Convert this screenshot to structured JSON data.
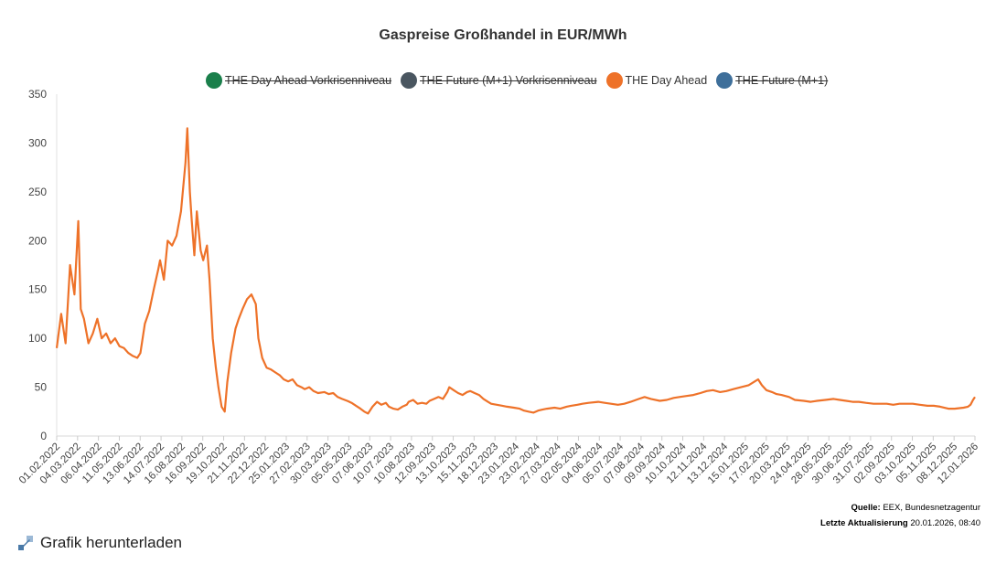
{
  "chart_data": {
    "type": "line",
    "title": "Gaspreise Großhandel in EUR/MWh",
    "ylim": [
      0,
      350
    ],
    "y_ticks": [
      "0",
      "50",
      "100",
      "150",
      "200",
      "250",
      "300",
      "350"
    ],
    "x_tick_labels": [
      "01.02.2022",
      "04.03.2022",
      "06.04.2022",
      "11.05.2022",
      "13.06.2022",
      "14.07.2022",
      "16.08.2022",
      "16.09.2022",
      "19.10.2022",
      "21.11.2022",
      "22.12.2022",
      "25.01.2023",
      "27.02.2023",
      "30.03.2023",
      "05.05.2023",
      "07.06.2023",
      "10.07.2023",
      "10.08.2023",
      "12.09.2023",
      "13.10.2023",
      "15.11.2023",
      "18.12.2023",
      "23.01.2024",
      "23.02.2024",
      "27.03.2024",
      "02.05.2024",
      "04.06.2024",
      "05.07.2024",
      "07.08.2024",
      "09.09.2024",
      "10.10.2024",
      "12.11.2024",
      "13.12.2024",
      "15.01.2025",
      "17.02.2025",
      "20.03.2025",
      "24.04.2025",
      "28.05.2025",
      "30.06.2025",
      "31.07.2025",
      "02.09.2025",
      "03.10.2025",
      "05.11.2025",
      "08.12.2025",
      "12.01.2026"
    ],
    "grid": false,
    "legend_position": "top",
    "series": [
      {
        "name": "THE Day Ahead Vorkrisenniveau",
        "color": "#1a7f4b",
        "visible": false,
        "values": []
      },
      {
        "name": "THE Future (M+1) Vorkrisenniveau",
        "color": "#4a5660",
        "visible": false,
        "values": []
      },
      {
        "name": "THE Day Ahead",
        "color": "#ee7229",
        "visible": true,
        "points": [
          [
            "01.02.2022",
            90
          ],
          [
            "08.02.2022",
            125
          ],
          [
            "15.02.2022",
            95
          ],
          [
            "22.02.2022",
            175
          ],
          [
            "01.03.2022",
            145
          ],
          [
            "07.03.2022",
            220
          ],
          [
            "11.03.2022",
            130
          ],
          [
            "16.03.2022",
            120
          ],
          [
            "23.03.2022",
            95
          ],
          [
            "30.03.2022",
            105
          ],
          [
            "06.04.2022",
            120
          ],
          [
            "13.04.2022",
            100
          ],
          [
            "20.04.2022",
            105
          ],
          [
            "27.04.2022",
            95
          ],
          [
            "04.05.2022",
            100
          ],
          [
            "11.05.2022",
            92
          ],
          [
            "18.05.2022",
            90
          ],
          [
            "25.05.2022",
            85
          ],
          [
            "01.06.2022",
            82
          ],
          [
            "08.06.2022",
            80
          ],
          [
            "13.06.2022",
            85
          ],
          [
            "20.06.2022",
            115
          ],
          [
            "27.06.2022",
            128
          ],
          [
            "04.07.2022",
            150
          ],
          [
            "11.07.2022",
            170
          ],
          [
            "14.07.2022",
            180
          ],
          [
            "20.07.2022",
            160
          ],
          [
            "26.07.2022",
            200
          ],
          [
            "02.08.2022",
            195
          ],
          [
            "09.08.2022",
            205
          ],
          [
            "16.08.2022",
            230
          ],
          [
            "23.08.2022",
            280
          ],
          [
            "26.08.2022",
            315
          ],
          [
            "30.08.2022",
            250
          ],
          [
            "02.09.2022",
            220
          ],
          [
            "06.09.2022",
            185
          ],
          [
            "10.09.2022",
            230
          ],
          [
            "16.09.2022",
            190
          ],
          [
            "20.09.2022",
            180
          ],
          [
            "26.09.2022",
            195
          ],
          [
            "30.09.2022",
            160
          ],
          [
            "05.10.2022",
            100
          ],
          [
            "10.10.2022",
            70
          ],
          [
            "14.10.2022",
            50
          ],
          [
            "19.10.2022",
            30
          ],
          [
            "24.10.2022",
            25
          ],
          [
            "28.10.2022",
            55
          ],
          [
            "03.11.2022",
            85
          ],
          [
            "10.11.2022",
            110
          ],
          [
            "15.11.2022",
            120
          ],
          [
            "21.11.2022",
            130
          ],
          [
            "28.11.2022",
            140
          ],
          [
            "05.12.2022",
            145
          ],
          [
            "12.12.2022",
            135
          ],
          [
            "16.12.2022",
            100
          ],
          [
            "22.12.2022",
            80
          ],
          [
            "29.12.2022",
            70
          ],
          [
            "05.01.2023",
            68
          ],
          [
            "12.01.2023",
            65
          ],
          [
            "19.01.2023",
            62
          ],
          [
            "25.01.2023",
            58
          ],
          [
            "01.02.2023",
            56
          ],
          [
            "08.02.2023",
            58
          ],
          [
            "15.02.2023",
            52
          ],
          [
            "22.02.2023",
            50
          ],
          [
            "27.02.2023",
            48
          ],
          [
            "06.03.2023",
            50
          ],
          [
            "13.03.2023",
            46
          ],
          [
            "20.03.2023",
            44
          ],
          [
            "30.03.2023",
            45
          ],
          [
            "06.04.2023",
            43
          ],
          [
            "13.04.2023",
            44
          ],
          [
            "20.04.2023",
            40
          ],
          [
            "27.04.2023",
            38
          ],
          [
            "05.05.2023",
            36
          ],
          [
            "12.05.2023",
            34
          ],
          [
            "19.05.2023",
            31
          ],
          [
            "26.05.2023",
            28
          ],
          [
            "01.06.2023",
            25
          ],
          [
            "07.06.2023",
            23
          ],
          [
            "14.06.2023",
            30
          ],
          [
            "21.06.2023",
            35
          ],
          [
            "28.06.2023",
            32
          ],
          [
            "05.07.2023",
            34
          ],
          [
            "10.07.2023",
            30
          ],
          [
            "17.07.2023",
            28
          ],
          [
            "24.07.2023",
            27
          ],
          [
            "31.07.2023",
            30
          ],
          [
            "07.08.2023",
            32
          ],
          [
            "10.08.2023",
            35
          ],
          [
            "17.08.2023",
            37
          ],
          [
            "24.08.2023",
            33
          ],
          [
            "31.08.2023",
            34
          ],
          [
            "07.09.2023",
            33
          ],
          [
            "12.09.2023",
            36
          ],
          [
            "19.09.2023",
            38
          ],
          [
            "26.09.2023",
            40
          ],
          [
            "03.10.2023",
            38
          ],
          [
            "10.10.2023",
            45
          ],
          [
            "13.10.2023",
            50
          ],
          [
            "20.10.2023",
            47
          ],
          [
            "27.10.2023",
            44
          ],
          [
            "03.11.2023",
            42
          ],
          [
            "10.11.2023",
            45
          ],
          [
            "15.11.2023",
            46
          ],
          [
            "22.11.2023",
            44
          ],
          [
            "29.11.2023",
            42
          ],
          [
            "06.12.2023",
            38
          ],
          [
            "13.12.2023",
            35
          ],
          [
            "18.12.2023",
            33
          ],
          [
            "27.12.2023",
            32
          ],
          [
            "05.01.2024",
            31
          ],
          [
            "12.01.2024",
            30
          ],
          [
            "23.01.2024",
            29
          ],
          [
            "01.02.2024",
            28
          ],
          [
            "08.02.2024",
            26
          ],
          [
            "15.02.2024",
            25
          ],
          [
            "23.02.2024",
            24
          ],
          [
            "01.03.2024",
            26
          ],
          [
            "08.03.2024",
            27
          ],
          [
            "15.03.2024",
            28
          ],
          [
            "27.03.2024",
            29
          ],
          [
            "05.04.2024",
            28
          ],
          [
            "15.04.2024",
            30
          ],
          [
            "22.04.2024",
            31
          ],
          [
            "02.05.2024",
            32
          ],
          [
            "10.05.2024",
            33
          ],
          [
            "20.05.2024",
            34
          ],
          [
            "04.06.2024",
            35
          ],
          [
            "14.06.2024",
            34
          ],
          [
            "24.06.2024",
            33
          ],
          [
            "05.07.2024",
            32
          ],
          [
            "15.07.2024",
            33
          ],
          [
            "25.07.2024",
            35
          ],
          [
            "07.08.2024",
            38
          ],
          [
            "16.08.2024",
            40
          ],
          [
            "26.08.2024",
            38
          ],
          [
            "09.09.2024",
            36
          ],
          [
            "20.09.2024",
            37
          ],
          [
            "01.10.2024",
            39
          ],
          [
            "10.10.2024",
            40
          ],
          [
            "21.10.2024",
            41
          ],
          [
            "01.11.2024",
            42
          ],
          [
            "12.11.2024",
            44
          ],
          [
            "22.11.2024",
            46
          ],
          [
            "02.12.2024",
            47
          ],
          [
            "13.12.2024",
            45
          ],
          [
            "23.12.2024",
            46
          ],
          [
            "03.01.2025",
            48
          ],
          [
            "15.01.2025",
            50
          ],
          [
            "27.01.2025",
            52
          ],
          [
            "06.02.2025",
            56
          ],
          [
            "11.02.2025",
            58
          ],
          [
            "17.02.2025",
            52
          ],
          [
            "24.02.2025",
            47
          ],
          [
            "05.03.2025",
            45
          ],
          [
            "12.03.2025",
            43
          ],
          [
            "20.03.2025",
            42
          ],
          [
            "01.04.2025",
            40
          ],
          [
            "10.04.2025",
            37
          ],
          [
            "24.04.2025",
            36
          ],
          [
            "05.05.2025",
            35
          ],
          [
            "15.05.2025",
            36
          ],
          [
            "28.05.2025",
            37
          ],
          [
            "10.06.2025",
            38
          ],
          [
            "20.06.2025",
            37
          ],
          [
            "30.06.2025",
            36
          ],
          [
            "10.07.2025",
            35
          ],
          [
            "20.07.2025",
            35
          ],
          [
            "31.07.2025",
            34
          ],
          [
            "12.08.2025",
            33
          ],
          [
            "22.08.2025",
            33
          ],
          [
            "02.09.2025",
            33
          ],
          [
            "12.09.2025",
            32
          ],
          [
            "22.09.2025",
            33
          ],
          [
            "03.10.2025",
            33
          ],
          [
            "13.10.2025",
            33
          ],
          [
            "24.10.2025",
            32
          ],
          [
            "05.11.2025",
            31
          ],
          [
            "15.11.2025",
            31
          ],
          [
            "25.11.2025",
            30
          ],
          [
            "08.12.2025",
            28
          ],
          [
            "18.12.2025",
            28
          ],
          [
            "01.01.2026",
            29
          ],
          [
            "08.01.2026",
            30
          ],
          [
            "12.01.2026",
            32
          ],
          [
            "16.01.2026",
            37
          ],
          [
            "19.01.2026",
            40
          ]
        ]
      },
      {
        "name": "THE Future (M+1)",
        "color": "#3e6f9a",
        "visible": false,
        "values": []
      }
    ]
  },
  "footer": {
    "source_label": "Quelle:",
    "source_text": "EEX, Bundesnetzagentur",
    "updated_label": "Letzte Aktualisierung",
    "updated_text": "20.01.2026, 08:40"
  },
  "download": {
    "label": "Grafik herunterladen",
    "icon": "download-icon"
  }
}
